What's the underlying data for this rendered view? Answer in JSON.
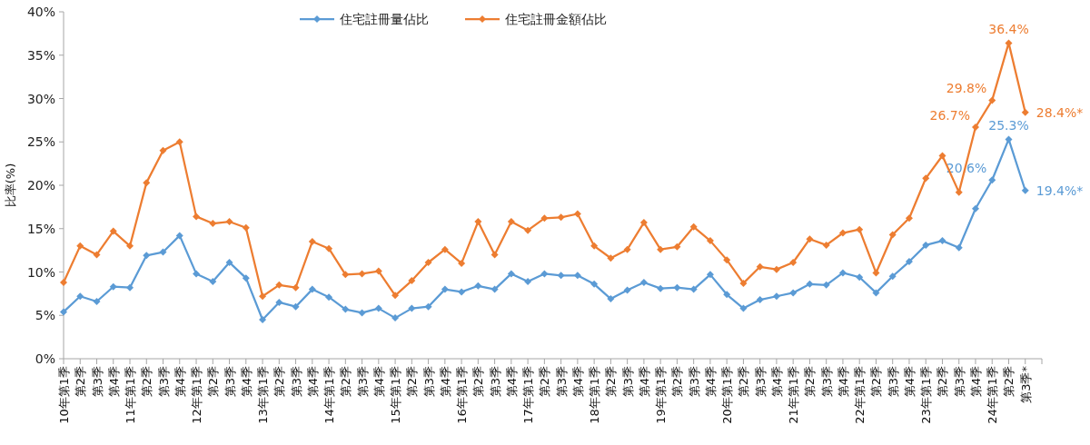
{
  "chart_data": {
    "type": "line",
    "ylabel": "比率(%)",
    "categories": [
      "10年第1季",
      "第2季",
      "第3季",
      "第4季",
      "11年第1季",
      "第2季",
      "第3季",
      "第4季",
      "12年第1季",
      "第2季",
      "第3季",
      "第4季",
      "13年第1季",
      "第2季",
      "第3季",
      "第4季",
      "14年第1季",
      "第2季",
      "第3季",
      "第4季",
      "15年第1季",
      "第2季",
      "第3季",
      "第4季",
      "16年第1季",
      "第2季",
      "第3季",
      "第4季",
      "17年第1季",
      "第2季",
      "第3季",
      "第4季",
      "18年第1季",
      "第2季",
      "第3季",
      "第4季",
      "19年第1季",
      "第2季",
      "第3季",
      "第4季",
      "20年第1季",
      "第2季",
      "第3季",
      "第4季",
      "21年第1季",
      "第2季",
      "第3季",
      "第4季",
      "22年第1季",
      "第2季",
      "第3季",
      "第4季",
      "23年第1季",
      "第2季",
      "第3季",
      "第4季",
      "24年第1季",
      "第2季",
      "第3季*"
    ],
    "series": [
      {
        "name": "住宅註冊量佔比",
        "color": "#5b9bd5",
        "values": [
          5.4,
          7.2,
          6.6,
          8.3,
          8.2,
          11.9,
          12.3,
          14.2,
          9.8,
          8.9,
          11.1,
          9.3,
          4.5,
          6.5,
          6.0,
          8.0,
          7.1,
          5.7,
          5.3,
          5.8,
          4.7,
          5.8,
          6.0,
          8.0,
          7.7,
          8.4,
          8.0,
          9.8,
          8.9,
          9.8,
          9.6,
          9.6,
          8.6,
          6.9,
          7.9,
          8.8,
          8.1,
          8.2,
          8.0,
          9.7,
          7.4,
          5.8,
          6.8,
          7.2,
          7.6,
          8.6,
          8.5,
          9.9,
          9.4,
          7.6,
          9.5,
          11.2,
          13.1,
          13.6,
          12.8,
          17.3,
          20.6,
          25.3,
          19.4
        ],
        "value_labels": [
          null,
          null,
          null,
          null,
          null,
          null,
          null,
          null,
          null,
          null,
          null,
          null,
          null,
          null,
          null,
          null,
          null,
          null,
          null,
          null,
          null,
          null,
          null,
          null,
          null,
          null,
          null,
          null,
          null,
          null,
          null,
          null,
          null,
          null,
          null,
          null,
          null,
          null,
          null,
          null,
          null,
          null,
          null,
          null,
          null,
          null,
          null,
          null,
          null,
          null,
          null,
          null,
          null,
          null,
          null,
          null,
          "20.6%",
          "25.3%",
          "19.4%*"
        ]
      },
      {
        "name": "住宅註冊金額佔比",
        "color": "#ed7d31",
        "values": [
          8.8,
          13.0,
          12.0,
          14.7,
          13.0,
          20.3,
          24.0,
          25.0,
          16.4,
          15.6,
          15.8,
          15.1,
          7.2,
          8.5,
          8.2,
          13.5,
          12.7,
          9.7,
          9.8,
          10.1,
          7.3,
          9.0,
          11.1,
          12.6,
          11.0,
          15.8,
          12.0,
          15.8,
          14.8,
          16.2,
          16.3,
          16.7,
          13.0,
          11.6,
          12.6,
          15.7,
          12.6,
          12.9,
          15.2,
          13.6,
          11.4,
          8.7,
          10.6,
          10.3,
          11.1,
          13.8,
          13.1,
          14.5,
          14.9,
          9.9,
          14.3,
          16.2,
          20.8,
          23.4,
          19.2,
          26.7,
          29.8,
          36.4,
          28.4
        ],
        "value_labels": [
          null,
          null,
          null,
          null,
          null,
          null,
          null,
          null,
          null,
          null,
          null,
          null,
          null,
          null,
          null,
          null,
          null,
          null,
          null,
          null,
          null,
          null,
          null,
          null,
          null,
          null,
          null,
          null,
          null,
          null,
          null,
          null,
          null,
          null,
          null,
          null,
          null,
          null,
          null,
          null,
          null,
          null,
          null,
          null,
          null,
          null,
          null,
          null,
          null,
          null,
          null,
          null,
          null,
          null,
          null,
          "26.7%",
          "29.8%",
          "36.4%",
          "28.4%*"
        ]
      }
    ],
    "ylim": [
      0,
      40
    ],
    "yticks": [
      {
        "value": 0,
        "label": "0%"
      },
      {
        "value": 5,
        "label": "5%"
      },
      {
        "value": 10,
        "label": "10%"
      },
      {
        "value": 15,
        "label": "15%"
      },
      {
        "value": 20,
        "label": "20%"
      },
      {
        "value": 25,
        "label": "25%"
      },
      {
        "value": 30,
        "label": "30%"
      },
      {
        "value": 35,
        "label": "35%"
      },
      {
        "value": 40,
        "label": "40%"
      }
    ],
    "grid": false,
    "legend": "top",
    "marker": "diamond",
    "line_style": "solid"
  }
}
